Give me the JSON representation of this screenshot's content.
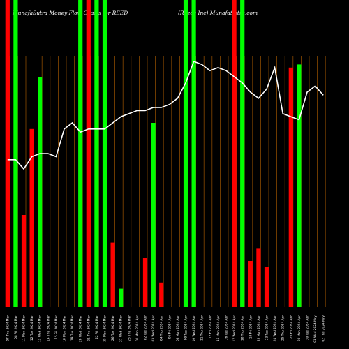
{
  "header": {
    "title_left": "MunafaSutra  Money Flow  Charts for REED",
    "title_right": "(Reeds Inc) MunafaSutra.com"
  },
  "colors": {
    "background": "#000000",
    "up_bar": "#00ff00",
    "down_bar": "#ff0000",
    "line": "#ffffff",
    "gridline": "#8a4a00"
  },
  "chart_data": {
    "type": "bar",
    "title": "",
    "grid": true,
    "legend": "none",
    "ylim": [
      0,
      100
    ],
    "categories": [
      "07 Thu 2024 Mar",
      "08 Fri 2024 Mar",
      "11 Mon 2024 Mar",
      "12 Tue 2024 Mar",
      "13 Wed 2024 Mar",
      "14 Thu 2024 Mar",
      "15 Fri 2024 Mar",
      "18 Mon 2024 Mar",
      "19 Tue 2024 Mar",
      "20 Wed 2024 Mar",
      "21 Thu 2024 Mar",
      "22 Fri 2024 Mar",
      "25 Mon 2024 Mar",
      "26 Tue 2024 Mar",
      "27 Wed 2024 Mar",
      "28 Thu 2024 Mar",
      "01 Mon 2024 Apr",
      "02 Tue 2024 Apr",
      "03 Wed 2024 Apr",
      "04 Thu 2024 Apr",
      "05 Fri 2024 Apr",
      "08 Mon 2024 Apr",
      "09 Tue 2024 Apr",
      "10 Wed 2024 Apr",
      "11 Thu 2024 Apr",
      "12 Fri 2024 Apr",
      "15 Mon 2024 Apr",
      "16 Tue 2024 Apr",
      "17 Wed 2024 Apr",
      "18 Thu 2024 Apr",
      "19 Fri 2024 Apr",
      "22 Mon 2024 Apr",
      "23 Tue 2024 Apr",
      "24 Wed 2024 Apr",
      "25 Thu 2024 Apr",
      "26 Fri 2024 Apr",
      "29 Mon 2024 Apr",
      "30 Tue 2024 Apr",
      "01 Wed 2024 May",
      "02 Thu 2024 May"
    ],
    "x_labels": [
      "07 Thu 2024 Mar",
      "08 Fri 2024 Mar",
      "11 Mon 2024 Mar",
      "12 Tue 2024 Mar",
      "13 Wed 2024 Mar",
      "14 Thu 2024 Mar",
      "15 Fri 2024 Mar",
      "18 Mon 2024 Mar",
      "19 Tue 2024 Mar",
      "20 Wed 2024 Mar",
      "21 Thu 2024 Mar",
      "22 Fri 2024 Mar",
      "25 Mon 2024 Mar",
      "26 Tue 2024 Mar",
      "27 Wed 2024 Mar",
      "28 Thu 2024 Mar",
      "01 Mon 2024 Apr",
      "02 Tue 2024 Apr",
      "03 Wed 2024 Apr",
      "04 Thu 2024 Apr",
      "05 Fri 2024 Apr",
      "08 Mon 2024 Apr",
      "09 Tue 2024 Apr",
      "10 Wed 2024 Apr",
      "11 Thu 2024 Apr",
      "12 Fri 2024 Apr",
      "15 Mon 2024 Apr",
      "16 Tue 2024 Apr",
      "17 Wed 2024 Apr",
      "18 Thu 2024 Apr",
      "19 Fri 2024 Apr",
      "22 Mon 2024 Apr",
      "23 Tue 2024 Apr",
      "24 Wed 2024 Apr",
      "25 Thu 2024 Apr",
      "26 Fri 2024 Apr",
      "29 Mon 2024 Apr",
      "30 Tue 2024 Apr",
      "01 Wed 2024 May",
      "02 Thu 2024 May"
    ],
    "series": [
      {
        "type": "bar",
        "values": [
          100,
          100,
          30,
          58,
          75,
          0,
          0,
          0,
          0,
          100,
          100,
          100,
          100,
          21,
          6,
          0,
          0,
          16,
          60,
          8,
          0,
          0,
          100,
          100,
          0,
          0,
          0,
          0,
          100,
          100,
          15,
          19,
          13,
          0,
          0,
          78,
          79,
          0,
          0,
          0
        ],
        "direction": [
          "down",
          "up",
          "down",
          "down",
          "up",
          "up",
          "down",
          "up",
          "up",
          "up",
          "down",
          "up",
          "up",
          "down",
          "up",
          "up",
          "up",
          "down",
          "up",
          "down",
          "up",
          "up",
          "up",
          "up",
          "down",
          "up",
          "down",
          "up",
          "down",
          "up",
          "down",
          "down",
          "down",
          "up",
          "up",
          "down",
          "up",
          "down",
          "up",
          "up"
        ]
      },
      {
        "type": "line",
        "values": [
          48,
          48,
          45,
          49,
          50,
          50,
          49,
          58,
          60,
          57,
          58,
          58,
          58,
          60,
          62,
          63,
          64,
          64,
          65,
          65,
          66,
          68,
          73,
          80,
          79,
          77,
          78,
          77,
          75,
          73,
          70,
          68,
          71,
          78,
          63,
          62,
          61,
          70,
          72,
          69
        ]
      }
    ]
  }
}
